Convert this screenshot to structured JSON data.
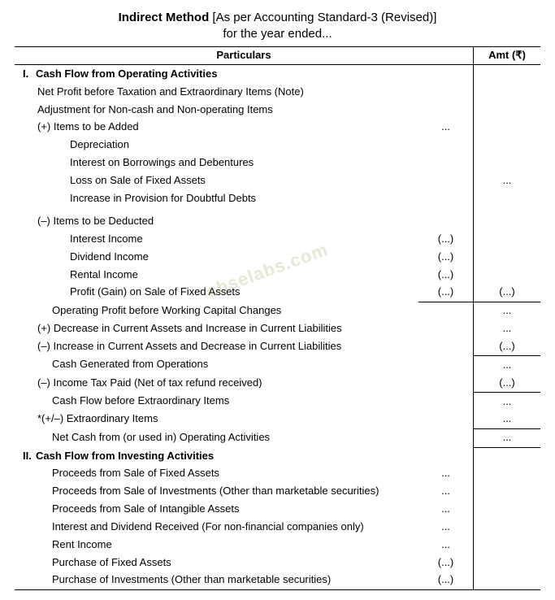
{
  "title": {
    "bold": "Indirect Method",
    "rest": " [As per Accounting Standard-3 (Revised)]",
    "line2": "for the year ended..."
  },
  "headers": {
    "particulars": "Particulars",
    "amt": "Amt (₹)"
  },
  "watermark": "cbselabs.com",
  "rows": [
    {
      "roman": "I.",
      "label": "Cash Flow from Operating Activities",
      "bold": true,
      "indent": 0,
      "sub": "",
      "amt": ""
    },
    {
      "label": "Net Profit before Taxation and Extraordinary Items (Note)",
      "indent": 1,
      "sub": "",
      "amt": ""
    },
    {
      "label": "Adjustment for Non-cash and Non-operating Items",
      "indent": 1,
      "sub": "",
      "amt": ""
    },
    {
      "label": "(+) Items to be Added",
      "indent": 1,
      "sub": "...",
      "amt": ""
    },
    {
      "label": "Depreciation",
      "indent": 3,
      "sub": "",
      "amt": ""
    },
    {
      "label": "Interest on Borrowings and Debentures",
      "indent": 3,
      "sub": "",
      "amt": ""
    },
    {
      "label": "Loss on Sale of Fixed Assets",
      "indent": 3,
      "sub": "",
      "amt": "..."
    },
    {
      "label": "Increase in Provision for Doubtful Debts",
      "indent": 3,
      "sub": "",
      "amt": "",
      "gap_after": true
    },
    {
      "label": "(–) Items to be Deducted",
      "indent": 1,
      "sub": "",
      "amt": ""
    },
    {
      "label": "Interest Income",
      "indent": 3,
      "sub": "(...)",
      "amt": ""
    },
    {
      "label": "Dividend Income",
      "indent": 3,
      "sub": "(...)",
      "amt": ""
    },
    {
      "label": "Rental Income",
      "indent": 3,
      "sub": "(...)",
      "amt": ""
    },
    {
      "label": "Profit (Gain) on Sale of Fixed Assets",
      "indent": 3,
      "sub": "(...)",
      "amt": "(...)",
      "sub_bb": true,
      "amt_bb": true
    },
    {
      "label": "Operating Profit before Working Capital Changes",
      "indent": 2,
      "sub": "",
      "amt": "..."
    },
    {
      "label": "(+)  Decrease in Current Assets and Increase in Current Liabilities",
      "indent": 1,
      "sub": "",
      "amt": "..."
    },
    {
      "label": "(–)  Increase in Current Assets and Decrease in Current Liabilities",
      "indent": 1,
      "sub": "",
      "amt": "(...)",
      "amt_bb": true
    },
    {
      "label": "Cash Generated from Operations",
      "indent": 2,
      "sub": "",
      "amt": "..."
    },
    {
      "label": "(–)  Income Tax Paid (Net of tax refund received)",
      "indent": 1,
      "sub": "",
      "amt": "(...)",
      "amt_bb": true
    },
    {
      "label": "Cash Flow before Extraordinary Items",
      "indent": 2,
      "sub": "",
      "amt": "..."
    },
    {
      "label": "*(+/–)  Extraordinary Items",
      "indent": 1,
      "sub": "",
      "amt": "...",
      "amt_bb": true
    },
    {
      "label": "Net Cash from (or used in) Operating Activities",
      "indent": 2,
      "sub": "",
      "amt": "...",
      "amt_bb": true
    },
    {
      "roman": "II.",
      "label": "Cash Flow from Investing Activities",
      "bold": true,
      "indent": 0,
      "sub": "",
      "amt": ""
    },
    {
      "label": "Proceeds from Sale of Fixed Assets",
      "indent": 2,
      "sub": "...",
      "amt": ""
    },
    {
      "label": "Proceeds from Sale of Investments (Other than marketable securities)",
      "indent": 2,
      "sub": "...",
      "amt": ""
    },
    {
      "label": "Proceeds from Sale of Intangible Assets",
      "indent": 2,
      "sub": "...",
      "amt": ""
    },
    {
      "label": "Interest and Dividend Received (For non-financial companies only)",
      "indent": 2,
      "sub": "...",
      "amt": ""
    },
    {
      "label": "Rent Income",
      "indent": 2,
      "sub": "...",
      "amt": ""
    },
    {
      "label": "Purchase of Fixed Assets",
      "indent": 2,
      "sub": "(...)",
      "amt": ""
    },
    {
      "label": "Purchase of Investments (Other than marketable securities)",
      "indent": 2,
      "sub": "(...)",
      "amt": ""
    }
  ]
}
